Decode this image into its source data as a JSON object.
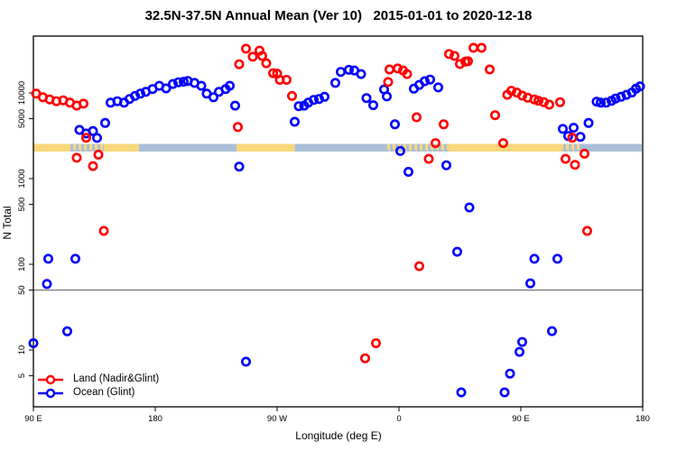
{
  "title": "32.5N-37.5N Annual Mean (Ver 10)   2015-01-01 to 2020-12-18",
  "chart_data": {
    "type": "scatter",
    "title": "32.5N-37.5N Annual Mean (Ver 10)   2015-01-01 to 2020-12-18",
    "xlabel": "Longitude (deg E)",
    "ylabel": "N Total",
    "x_axis": {
      "range_deg": [
        90,
        540
      ],
      "ticks": [
        {
          "deg": 90,
          "label": "90 E"
        },
        {
          "deg": 180,
          "label": "180"
        },
        {
          "deg": 270,
          "label": "90 W"
        },
        {
          "deg": 360,
          "label": "0"
        },
        {
          "deg": 450,
          "label": "90 E"
        },
        {
          "deg": 540,
          "label": "180"
        }
      ]
    },
    "y_axis": {
      "scale": "log10",
      "range": [
        2.2,
        46000
      ],
      "ticks": [
        {
          "value": 10000,
          "label": "10000"
        },
        {
          "value": 5000,
          "label": "5000"
        },
        {
          "value": 1000,
          "label": "1000"
        },
        {
          "value": 500,
          "label": "500"
        },
        {
          "value": 100,
          "label": "100"
        },
        {
          "value": 50,
          "label": "50"
        },
        {
          "value": 10,
          "label": "10"
        },
        {
          "value": 5,
          "label": "5"
        }
      ]
    },
    "reference_line": {
      "value": 50,
      "color": "#8a8a8a"
    },
    "surface_band": {
      "value_top": 2540,
      "value_bottom": 2070,
      "land_color": "#F9D77C",
      "ocean_color": "#AABFD8",
      "segments": [
        {
          "from": 90,
          "to": 117,
          "type": "land"
        },
        {
          "from": 117,
          "to": 142,
          "type": "coast"
        },
        {
          "from": 142,
          "to": 168,
          "type": "land"
        },
        {
          "from": 168,
          "to": 240,
          "type": "ocean"
        },
        {
          "from": 240,
          "to": 283,
          "type": "land"
        },
        {
          "from": 283,
          "to": 350,
          "type": "ocean"
        },
        {
          "from": 350,
          "to": 397,
          "type": "coast"
        },
        {
          "from": 397,
          "to": 480,
          "type": "land"
        },
        {
          "from": 480,
          "to": 494,
          "type": "coast"
        },
        {
          "from": 494,
          "to": 539.3,
          "type": "ocean"
        }
      ]
    },
    "legend_position": "bottom-left",
    "series": [
      {
        "name": "Land (Nadir&Glint)",
        "color": "#FF0000",
        "marker": "open-circle",
        "points": [
          [
            92,
            9800
          ],
          [
            97,
            8900
          ],
          [
            102,
            8400
          ],
          [
            107,
            8000
          ],
          [
            112,
            8200
          ],
          [
            117,
            7700
          ],
          [
            122,
            7100
          ],
          [
            127,
            7500
          ],
          [
            129,
            3000
          ],
          [
            122,
            1750
          ],
          [
            134,
            1400
          ],
          [
            138,
            1900
          ],
          [
            142,
            245
          ],
          [
            241,
            4000
          ],
          [
            242,
            21600
          ],
          [
            247,
            32800
          ],
          [
            252,
            26400
          ],
          [
            257,
            31200
          ],
          [
            259,
            27000
          ],
          [
            262,
            22200
          ],
          [
            267,
            17000
          ],
          [
            270,
            16800
          ],
          [
            272,
            14200
          ],
          [
            277,
            14200
          ],
          [
            281,
            9200
          ],
          [
            352,
            13400
          ],
          [
            353,
            18800
          ],
          [
            359,
            19300
          ],
          [
            363,
            18300
          ],
          [
            366,
            16600
          ],
          [
            373,
            5200
          ],
          [
            382,
            1700
          ],
          [
            387,
            2600
          ],
          [
            393,
            4300
          ],
          [
            375,
            95
          ],
          [
            397,
            28400
          ],
          [
            401,
            27000
          ],
          [
            405,
            21700
          ],
          [
            409,
            23200
          ],
          [
            411,
            23400
          ],
          [
            415,
            33600
          ],
          [
            421,
            33600
          ],
          [
            427,
            18800
          ],
          [
            431,
            5500
          ],
          [
            437,
            2600
          ],
          [
            440,
            9500
          ],
          [
            443,
            10600
          ],
          [
            447,
            10100
          ],
          [
            451,
            9300
          ],
          [
            455,
            8800
          ],
          [
            460,
            8400
          ],
          [
            463,
            8100
          ],
          [
            467,
            7800
          ],
          [
            471,
            7300
          ],
          [
            479,
            7800
          ],
          [
            483,
            1700
          ],
          [
            488,
            3000
          ],
          [
            490,
            1450
          ],
          [
            497,
            1950
          ],
          [
            499,
            245
          ],
          [
            335,
            8
          ],
          [
            343,
            12
          ]
        ]
      },
      {
        "name": "Ocean (Glint)",
        "color": "#0000FF",
        "marker": "open-circle",
        "points": [
          [
            90,
            12
          ],
          [
            100,
            59
          ],
          [
            101,
            116
          ],
          [
            115,
            16.5
          ],
          [
            121,
            116
          ],
          [
            247,
            7.3
          ],
          [
            124,
            3700
          ],
          [
            129,
            3360
          ],
          [
            134,
            3590
          ],
          [
            137,
            2980
          ],
          [
            143,
            4460
          ],
          [
            147,
            7700
          ],
          [
            152,
            8000
          ],
          [
            157,
            7700
          ],
          [
            161,
            8500
          ],
          [
            165,
            9200
          ],
          [
            169,
            9800
          ],
          [
            173,
            10300
          ],
          [
            178,
            11100
          ],
          [
            183,
            12100
          ],
          [
            188,
            11300
          ],
          [
            193,
            12700
          ],
          [
            197,
            13300
          ],
          [
            201,
            13500
          ],
          [
            204,
            13800
          ],
          [
            209,
            13100
          ],
          [
            214,
            12100
          ],
          [
            218,
            9800
          ],
          [
            223,
            8900
          ],
          [
            227,
            10300
          ],
          [
            232,
            11100
          ],
          [
            235,
            12100
          ],
          [
            239,
            7100
          ],
          [
            242,
            1380
          ],
          [
            283,
            4600
          ],
          [
            286,
            7000
          ],
          [
            290,
            7100
          ],
          [
            293,
            7700
          ],
          [
            297,
            8300
          ],
          [
            301,
            8500
          ],
          [
            305,
            9000
          ],
          [
            313,
            13100
          ],
          [
            317,
            17600
          ],
          [
            323,
            18600
          ],
          [
            327,
            18300
          ],
          [
            332,
            16600
          ],
          [
            336,
            8700
          ],
          [
            341,
            7200
          ],
          [
            349,
            11000
          ],
          [
            351,
            9100
          ],
          [
            357,
            4300
          ],
          [
            361,
            2100
          ],
          [
            367,
            1200
          ],
          [
            371,
            11200
          ],
          [
            375,
            12400
          ],
          [
            379,
            13700
          ],
          [
            383,
            14300
          ],
          [
            389,
            11600
          ],
          [
            395,
            1430
          ],
          [
            403,
            140
          ],
          [
            412,
            460
          ],
          [
            406,
            3.2
          ],
          [
            438,
            3.2
          ],
          [
            442,
            5.3
          ],
          [
            449,
            9.5
          ],
          [
            451,
            12.4
          ],
          [
            457,
            60
          ],
          [
            460,
            116
          ],
          [
            473,
            16.6
          ],
          [
            477,
            116
          ],
          [
            481,
            3800
          ],
          [
            485,
            3140
          ],
          [
            489,
            3920
          ],
          [
            494,
            3070
          ],
          [
            500,
            4460
          ],
          [
            506,
            7900
          ],
          [
            509,
            7700
          ],
          [
            513,
            7700
          ],
          [
            517,
            8100
          ],
          [
            520,
            8600
          ],
          [
            524,
            9000
          ],
          [
            528,
            9500
          ],
          [
            532,
            10100
          ],
          [
            535,
            11200
          ],
          [
            538,
            11900
          ]
        ]
      }
    ]
  }
}
